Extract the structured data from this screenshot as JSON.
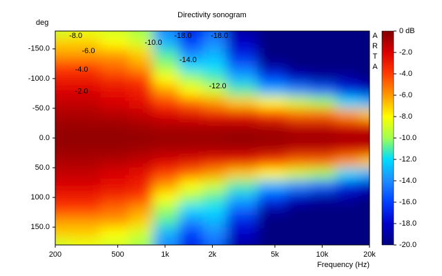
{
  "chart_data": {
    "type": "heatmap",
    "title": "Directivity sonogram",
    "x_label": "Frequency (Hz)",
    "y_label": "deg",
    "watermark": "ARTA",
    "log_x": true,
    "x": [
      200,
      300,
      500,
      700,
      1000,
      1500,
      2000,
      3000,
      5000,
      7000,
      10000,
      15000,
      20000
    ],
    "y": [
      -180,
      -160,
      -140,
      -120,
      -100,
      -80,
      -60,
      -40,
      -20,
      0,
      20,
      40,
      60,
      80,
      100,
      120,
      140,
      160,
      180
    ],
    "values": [
      [
        -9,
        -8.5,
        -9,
        -10,
        -14,
        -17,
        -15,
        -19,
        -20,
        -20,
        -20,
        -20,
        -20
      ],
      [
        -7,
        -7,
        -8,
        -9,
        -13,
        -16,
        -14,
        -18,
        -20,
        -20,
        -20,
        -20,
        -20
      ],
      [
        -6,
        -6,
        -6,
        -7,
        -11,
        -14,
        -13,
        -17,
        -20,
        -20,
        -20,
        -20,
        -20
      ],
      [
        -4,
        -4,
        -5,
        -6,
        -10,
        -12,
        -12,
        -15,
        -19,
        -20,
        -20,
        -20,
        -20
      ],
      [
        -3,
        -3,
        -3.5,
        -4,
        -8,
        -10,
        -11,
        -13,
        -16,
        -18,
        -19,
        -19,
        -20
      ],
      [
        -2,
        -2,
        -2.5,
        -3,
        -6,
        -8,
        -9,
        -11,
        -13,
        -14,
        -15,
        -17,
        -18
      ],
      [
        -1.5,
        -1.5,
        -2,
        -2.5,
        -4,
        -5,
        -6,
        -7,
        -8,
        -9,
        -10,
        -12,
        -13
      ],
      [
        -1,
        -1,
        -1.2,
        -1.5,
        -2,
        -2.5,
        -3,
        -3,
        -4,
        -5,
        -5,
        -6,
        -7
      ],
      [
        -0.6,
        -0.6,
        -0.6,
        -0.8,
        -1,
        -1,
        -1,
        -1,
        -1,
        -1.5,
        -1.5,
        -2,
        -2
      ],
      [
        -0.4,
        -0.4,
        -0.4,
        -0.4,
        -0.5,
        -0.5,
        -0.5,
        -0.3,
        -0.5,
        -0.5,
        -0.5,
        -0.5,
        -0.5
      ],
      [
        -0.6,
        -0.6,
        -0.6,
        -0.8,
        -1,
        -1,
        -1,
        -1,
        -1,
        -1.5,
        -1.5,
        -2,
        -2
      ],
      [
        -1,
        -1,
        -1.2,
        -1.5,
        -2,
        -2.5,
        -3,
        -3,
        -4,
        -5,
        -5,
        -6,
        -7
      ],
      [
        -1.5,
        -1.5,
        -2,
        -2.5,
        -4,
        -5,
        -6,
        -7,
        -8,
        -9,
        -10,
        -12,
        -13
      ],
      [
        -2,
        -2,
        -2.5,
        -3,
        -6,
        -8,
        -9,
        -11,
        -13,
        -14,
        -15,
        -17,
        -18
      ],
      [
        -3,
        -3,
        -3.5,
        -4,
        -8,
        -10,
        -11,
        -13,
        -16,
        -18,
        -19,
        -19,
        -20
      ],
      [
        -4,
        -4,
        -5,
        -6,
        -10,
        -12,
        -12,
        -15,
        -19,
        -20,
        -20,
        -20,
        -20
      ],
      [
        -6,
        -6,
        -6,
        -7,
        -11,
        -14,
        -13,
        -17,
        -20,
        -20,
        -20,
        -20,
        -20
      ],
      [
        -7,
        -7,
        -8,
        -9,
        -13,
        -16,
        -14,
        -18,
        -20,
        -20,
        -20,
        -20,
        -20
      ],
      [
        -9,
        -8.5,
        -9,
        -10,
        -14,
        -17,
        -15,
        -19,
        -20,
        -20,
        -20,
        -20,
        -20
      ]
    ],
    "colors": [
      "#000080",
      "#0000c8",
      "#0040ff",
      "#1e8cff",
      "#00dcff",
      "#a0ff50",
      "#ffff00",
      "#ff9a00",
      "#ff3c00",
      "#dc0000",
      "#800000"
    ],
    "xlim": [
      200,
      20000
    ],
    "ylim": [
      180,
      -180
    ],
    "zlim": [
      -20,
      0
    ],
    "xticks": [
      200,
      500,
      {
        "value": 1000,
        "label": "1k"
      },
      {
        "value": 2000,
        "label": "2k"
      },
      {
        "value": 5000,
        "label": "5k"
      },
      {
        "value": 10000,
        "label": "10k"
      },
      {
        "value": 20000,
        "label": "20k"
      }
    ],
    "yticks": [
      {
        "value": -150,
        "label": "-150.0"
      },
      {
        "value": -100,
        "label": "-100.0"
      },
      {
        "value": -50,
        "label": "-50.0"
      },
      {
        "value": 0,
        "label": "0.0"
      },
      {
        "value": 50,
        "label": "50.0"
      },
      {
        "value": 100,
        "label": "100.0"
      },
      {
        "value": 150,
        "label": "150.0"
      }
    ],
    "zticks": [
      {
        "value": 0,
        "label": "0 dB"
      },
      {
        "value": -2,
        "label": "-2.0"
      },
      {
        "value": -4,
        "label": "-4.0"
      },
      {
        "value": -6,
        "label": "-6.0"
      },
      {
        "value": -8,
        "label": "-8.0"
      },
      {
        "value": -10,
        "label": "-10.0"
      },
      {
        "value": -12,
        "label": "-12.0"
      },
      {
        "value": -14,
        "label": "-14.0"
      },
      {
        "value": -16,
        "label": "-16.0"
      },
      {
        "value": -18,
        "label": "-18.0"
      },
      {
        "value": -20,
        "label": "-20.0"
      }
    ],
    "annotations": [
      {
        "text": "-8.0",
        "x": 270,
        "y": -172
      },
      {
        "text": "-6.0",
        "x": 325,
        "y": -146
      },
      {
        "text": "-4.0",
        "x": 294,
        "y": -115
      },
      {
        "text": "-2.0",
        "x": 294,
        "y": -78
      },
      {
        "text": "-10.0",
        "x": 842,
        "y": -160
      },
      {
        "text": "-18.0",
        "x": 1300,
        "y": -172
      },
      {
        "text": "-18.0",
        "x": 2220,
        "y": -172
      },
      {
        "text": "-14.0",
        "x": 1400,
        "y": -131
      },
      {
        "text": "-12.0",
        "x": 2160,
        "y": -87
      }
    ]
  }
}
